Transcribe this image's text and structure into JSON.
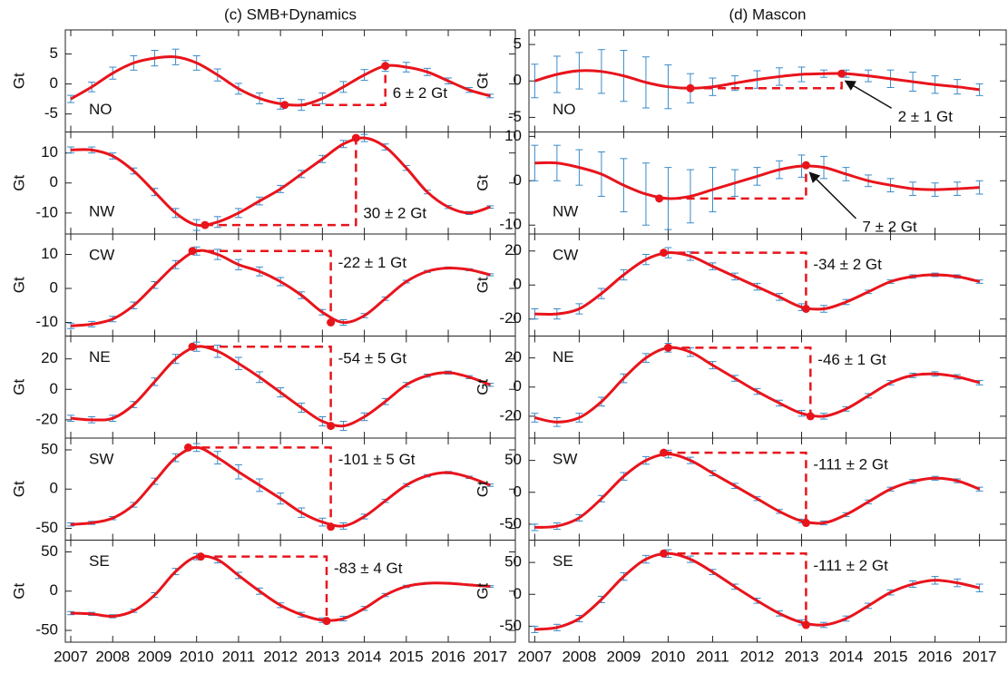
{
  "chart_data": [
    {
      "type": "line",
      "title": "(c) SMB+Dynamics",
      "label": "NO",
      "annotation": "6 ± 2 Gt",
      "ylabel": "Gt",
      "color": "#e8141c",
      "error_color": "#3a8ac8",
      "x": [
        2007,
        2007.5,
        2008,
        2008.5,
        2009,
        2009.5,
        2010,
        2010.5,
        2011,
        2011.5,
        2012,
        2012.5,
        2013,
        2013.5,
        2014,
        2014.5,
        2015,
        2015.5,
        2016,
        2016.5,
        2017
      ],
      "values": [
        -2.5,
        -0.5,
        1.8,
        3.5,
        4.3,
        4.5,
        3.5,
        1.5,
        -0.8,
        -2.4,
        -3.3,
        -3.5,
        -2.4,
        -0.5,
        1.5,
        3,
        2.8,
        2,
        0.5,
        -1,
        -2
      ],
      "errors": [
        0.6,
        0.8,
        1,
        1.2,
        1.3,
        1.3,
        1.2,
        1,
        0.9,
        0.9,
        0.9,
        0.9,
        0.9,
        0.9,
        0.9,
        0.9,
        0.8,
        0.6,
        0.5,
        0.4,
        0.3
      ],
      "highlight_points": [
        [
          2012.1,
          -3.5
        ],
        [
          2014.5,
          3
        ]
      ],
      "xlim": [
        2006.87,
        2017.6
      ],
      "xticks": [
        2007,
        2008,
        2009,
        2010,
        2011,
        2012,
        2013,
        2014,
        2015,
        2016,
        2017
      ],
      "ylim": [
        -8,
        9
      ],
      "yticks": [
        -5,
        0,
        5
      ]
    },
    {
      "type": "line",
      "label": "NW",
      "annotation": "30 ± 2 Gt",
      "ylabel": "Gt",
      "color": "#e8141c",
      "error_color": "#3a8ac8",
      "x": [
        2007,
        2007.5,
        2008,
        2008.5,
        2009,
        2009.5,
        2010,
        2010.5,
        2011,
        2011.5,
        2012,
        2012.5,
        2013,
        2013.5,
        2014,
        2014.5,
        2015,
        2015.5,
        2016,
        2016.5,
        2017
      ],
      "values": [
        11,
        11,
        9,
        4,
        -3,
        -10,
        -14,
        -13,
        -10,
        -6,
        -2,
        3,
        8,
        13,
        15,
        12,
        5,
        -3,
        -8,
        -10,
        -8
      ],
      "errors": [
        1,
        1,
        1,
        1,
        1.2,
        1.5,
        1.8,
        1.8,
        1.5,
        1.3,
        1.2,
        1.2,
        1.2,
        1.2,
        1.2,
        1,
        0.8,
        0.6,
        0.5,
        0.5,
        0.4
      ],
      "highlight_points": [
        [
          2010.2,
          -14
        ],
        [
          2013.8,
          15
        ]
      ],
      "xlim": [
        2006.87,
        2017.6
      ],
      "xticks": [
        2007,
        2008,
        2009,
        2010,
        2011,
        2012,
        2013,
        2014,
        2015,
        2016,
        2017
      ],
      "ylim": [
        -17,
        17
      ],
      "yticks": [
        -10,
        0,
        10
      ]
    },
    {
      "type": "line",
      "label": "CW",
      "annotation": "-22 ± 1 Gt",
      "ylabel": "Gt",
      "color": "#e8141c",
      "error_color": "#3a8ac8",
      "x": [
        2007,
        2007.5,
        2008,
        2008.5,
        2009,
        2009.5,
        2010,
        2010.5,
        2011,
        2011.5,
        2012,
        2012.5,
        2013,
        2013.5,
        2014,
        2014.5,
        2015,
        2015.5,
        2016,
        2016.5,
        2017
      ],
      "values": [
        -11,
        -10.5,
        -9,
        -5,
        1,
        7,
        11,
        10,
        7,
        5,
        2,
        -2,
        -7,
        -10,
        -8,
        -3,
        2,
        5,
        6,
        5.5,
        4
      ],
      "errors": [
        0.8,
        0.8,
        0.8,
        1,
        1,
        1.2,
        1.2,
        1.5,
        1.5,
        1.3,
        1.2,
        1,
        0.8,
        0.8,
        0.6,
        0.5,
        0.4,
        0.3,
        0.3,
        0.3,
        0.3
      ],
      "highlight_points": [
        [
          2009.9,
          11
        ],
        [
          2013.2,
          -10
        ]
      ],
      "xlim": [
        2006.87,
        2017.6
      ],
      "xticks": [
        2007,
        2008,
        2009,
        2010,
        2011,
        2012,
        2013,
        2014,
        2015,
        2016,
        2017
      ],
      "ylim": [
        -14,
        16
      ],
      "yticks": [
        -10,
        0,
        10
      ]
    },
    {
      "type": "line",
      "label": "NE",
      "annotation": "-54 ± 5 Gt",
      "ylabel": "Gt",
      "color": "#e8141c",
      "error_color": "#3a8ac8",
      "x": [
        2007,
        2007.5,
        2008,
        2008.5,
        2009,
        2009.5,
        2010,
        2010.5,
        2011,
        2011.5,
        2012,
        2012.5,
        2013,
        2013.5,
        2014,
        2014.5,
        2015,
        2015.5,
        2016,
        2016.5,
        2017
      ],
      "values": [
        -19,
        -20,
        -19,
        -10,
        5,
        20,
        28,
        25,
        17,
        8,
        -2,
        -12,
        -21,
        -24,
        -18,
        -8,
        3,
        9,
        11,
        8,
        3
      ],
      "errors": [
        2,
        2,
        2,
        2,
        2.5,
        3,
        3,
        4,
        4,
        3.5,
        3,
        3,
        3,
        3,
        2.5,
        2,
        1.5,
        1,
        1,
        1,
        1
      ],
      "highlight_points": [
        [
          2009.9,
          28
        ],
        [
          2013.2,
          -24
        ]
      ],
      "xlim": [
        2006.87,
        2017.6
      ],
      "xticks": [
        2007,
        2008,
        2009,
        2010,
        2011,
        2012,
        2013,
        2014,
        2015,
        2016,
        2017
      ],
      "ylim": [
        -32,
        35
      ],
      "yticks": [
        -20,
        0,
        20
      ]
    },
    {
      "type": "line",
      "label": "SW",
      "annotation": "-101 ± 5 Gt",
      "ylabel": "Gt",
      "color": "#e8141c",
      "error_color": "#3a8ac8",
      "x": [
        2007,
        2007.5,
        2008,
        2008.5,
        2009,
        2009.5,
        2010,
        2010.5,
        2011,
        2011.5,
        2012,
        2012.5,
        2013,
        2013.5,
        2014,
        2014.5,
        2015,
        2015.5,
        2016,
        2016.5,
        2017
      ],
      "values": [
        -45,
        -43,
        -37,
        -20,
        10,
        40,
        53,
        40,
        22,
        5,
        -12,
        -30,
        -42,
        -47,
        -35,
        -15,
        5,
        17,
        21,
        15,
        5
      ],
      "errors": [
        2,
        2,
        2,
        3,
        4,
        5,
        5,
        8,
        9,
        8,
        7,
        6,
        5,
        4,
        3,
        2,
        2,
        1.5,
        1.5,
        1.5,
        1.5
      ],
      "highlight_points": [
        [
          2009.8,
          53
        ],
        [
          2013.2,
          -48
        ]
      ],
      "xlim": [
        2006.87,
        2017.6
      ],
      "xticks": [
        2007,
        2008,
        2009,
        2010,
        2011,
        2012,
        2013,
        2014,
        2015,
        2016,
        2017
      ],
      "ylim": [
        -65,
        65
      ],
      "yticks": [
        -50,
        0,
        50
      ]
    },
    {
      "type": "line",
      "label": "SE",
      "annotation": "-83 ± 4 Gt",
      "ylabel": "Gt",
      "color": "#e8141c",
      "error_color": "#3a8ac8",
      "x": [
        2007,
        2007.5,
        2008,
        2008.5,
        2009,
        2009.5,
        2010,
        2010.5,
        2011,
        2011.5,
        2012,
        2012.5,
        2013,
        2013.5,
        2014,
        2014.5,
        2015,
        2015.5,
        2016,
        2016.5,
        2017
      ],
      "values": [
        -28,
        -29,
        -32,
        -25,
        -5,
        25,
        44,
        40,
        20,
        0,
        -18,
        -30,
        -37,
        -35,
        -22,
        -5,
        6,
        10,
        10,
        8,
        6
      ],
      "errors": [
        2,
        2,
        2,
        2,
        3,
        4,
        4,
        4,
        4,
        4,
        3,
        3,
        3,
        3,
        2.5,
        2,
        1.5,
        1,
        1,
        1,
        1
      ],
      "highlight_points": [
        [
          2010.1,
          44
        ],
        [
          2013.1,
          -38
        ]
      ],
      "xlim": [
        2006.87,
        2017.6
      ],
      "xticks": [
        2007,
        2008,
        2009,
        2010,
        2011,
        2012,
        2013,
        2014,
        2015,
        2016,
        2017
      ],
      "ylim": [
        -65,
        65
      ],
      "yticks": [
        -50,
        0,
        50
      ]
    },
    {
      "type": "line",
      "title": "(d) Mascon",
      "label": "NO",
      "annotation": "2 ± 1 Gt",
      "arrow": true,
      "ylabel": "Gt",
      "color": "#e8141c",
      "error_color": "#3a8ac8",
      "x": [
        2007,
        2007.5,
        2008,
        2008.5,
        2009,
        2009.5,
        2010,
        2010.5,
        2011,
        2011.5,
        2012,
        2012.5,
        2013,
        2013.5,
        2014,
        2014.5,
        2015,
        2015.5,
        2016,
        2016.5,
        2017
      ],
      "values": [
        0,
        0.9,
        1.4,
        1.3,
        0.7,
        -0.2,
        -0.8,
        -1,
        -0.8,
        -0.3,
        0.2,
        0.6,
        0.9,
        1,
        1,
        0.7,
        0.3,
        -0.1,
        -0.5,
        -0.8,
        -1.2
      ],
      "errors": [
        2.3,
        2.5,
        2.5,
        3,
        3.5,
        3.5,
        3,
        2,
        1.2,
        1,
        1.2,
        1.2,
        1,
        0.5,
        0.5,
        0.8,
        1.2,
        1.3,
        1.2,
        1,
        0.8
      ],
      "highlight_points": [
        [
          2010.5,
          -1
        ],
        [
          2013.9,
          1
        ]
      ],
      "xlim": [
        2006.87,
        2017.6
      ],
      "xticks": [
        2007,
        2008,
        2009,
        2010,
        2011,
        2012,
        2013,
        2014,
        2015,
        2016,
        2017
      ],
      "ylim": [
        -7,
        7
      ],
      "yticks": [
        -5,
        0,
        5
      ]
    },
    {
      "type": "line",
      "label": "NW",
      "annotation": "7 ± 2 Gt",
      "arrow": true,
      "ylabel": "Gt",
      "color": "#e8141c",
      "error_color": "#3a8ac8",
      "x": [
        2007,
        2007.5,
        2008,
        2008.5,
        2009,
        2009.5,
        2010,
        2010.5,
        2011,
        2011.5,
        2012,
        2012.5,
        2013,
        2013.5,
        2014,
        2014.5,
        2015,
        2015.5,
        2016,
        2016.5,
        2017
      ],
      "values": [
        4,
        4,
        3,
        1.5,
        -1,
        -3,
        -4,
        -3.5,
        -2,
        -0.5,
        1,
        2.5,
        3.3,
        3,
        1.5,
        0,
        -1,
        -1.8,
        -2,
        -1.8,
        -1.5
      ],
      "errors": [
        4,
        4,
        4,
        5,
        6,
        7,
        7,
        6,
        5,
        3,
        2,
        2,
        2.5,
        2.5,
        1.5,
        1.3,
        1.5,
        1.5,
        1.5,
        1.5,
        1.5
      ],
      "highlight_points": [
        [
          2009.8,
          -4
        ],
        [
          2013.1,
          3.5
        ]
      ],
      "xlim": [
        2006.87,
        2017.6
      ],
      "xticks": [
        2007,
        2008,
        2009,
        2010,
        2011,
        2012,
        2013,
        2014,
        2015,
        2016,
        2017
      ],
      "ylim": [
        -12,
        11
      ],
      "yticks": [
        -10,
        0,
        10
      ]
    },
    {
      "type": "line",
      "label": "CW",
      "annotation": "-34 ± 2 Gt",
      "ylabel": "Gt",
      "color": "#e8141c",
      "error_color": "#3a8ac8",
      "x": [
        2007,
        2007.5,
        2008,
        2008.5,
        2009,
        2009.5,
        2010,
        2010.5,
        2011,
        2011.5,
        2012,
        2012.5,
        2013,
        2013.5,
        2014,
        2014.5,
        2015,
        2015.5,
        2016,
        2016.5,
        2017
      ],
      "values": [
        -17,
        -17,
        -14,
        -5,
        6,
        15,
        19,
        17,
        11,
        5,
        -1,
        -7,
        -13,
        -14,
        -10,
        -4,
        2,
        5,
        6,
        5,
        2
      ],
      "errors": [
        3,
        3,
        3,
        3,
        3,
        3,
        3,
        2.5,
        2,
        2,
        2,
        2,
        2,
        2,
        1.5,
        1,
        1,
        1,
        1,
        1,
        1
      ],
      "highlight_points": [
        [
          2009.9,
          19
        ],
        [
          2013.1,
          -14
        ]
      ],
      "xlim": [
        2006.87,
        2017.6
      ],
      "xticks": [
        2007,
        2008,
        2009,
        2010,
        2011,
        2012,
        2013,
        2014,
        2015,
        2016,
        2017
      ],
      "ylim": [
        -30,
        30
      ],
      "yticks": [
        -20,
        0,
        20
      ]
    },
    {
      "type": "line",
      "label": "NE",
      "annotation": "-46 ± 1 Gt",
      "ylabel": "Gt",
      "color": "#e8141c",
      "error_color": "#3a8ac8",
      "x": [
        2007,
        2007.5,
        2008,
        2008.5,
        2009,
        2009.5,
        2010,
        2010.5,
        2011,
        2011.5,
        2012,
        2012.5,
        2013,
        2013.5,
        2014,
        2014.5,
        2015,
        2015.5,
        2016,
        2016.5,
        2017
      ],
      "values": [
        -21,
        -24,
        -21,
        -10,
        6,
        20,
        27,
        24,
        15,
        6,
        -3,
        -11,
        -18,
        -20,
        -15,
        -6,
        3,
        8,
        9,
        7,
        3
      ],
      "errors": [
        3,
        3,
        3,
        3,
        3,
        3,
        3,
        3,
        2.5,
        2,
        2,
        2,
        2,
        2,
        1.5,
        1.5,
        1.5,
        1.5,
        1.5,
        1.5,
        1.5
      ],
      "highlight_points": [
        [
          2010,
          27
        ],
        [
          2013.2,
          -20
        ]
      ],
      "xlim": [
        2006.87,
        2017.6
      ],
      "xticks": [
        2007,
        2008,
        2009,
        2010,
        2011,
        2012,
        2013,
        2014,
        2015,
        2016,
        2017
      ],
      "ylim": [
        -35,
        35
      ],
      "yticks": [
        -20,
        0,
        20
      ]
    },
    {
      "type": "line",
      "label": "SW",
      "annotation": "-111 ± 2 Gt",
      "ylabel": "Gt",
      "color": "#e8141c",
      "error_color": "#3a8ac8",
      "x": [
        2007,
        2007.5,
        2008,
        2008.5,
        2009,
        2009.5,
        2010,
        2010.5,
        2011,
        2011.5,
        2012,
        2012.5,
        2013,
        2013.5,
        2014,
        2014.5,
        2015,
        2015.5,
        2016,
        2016.5,
        2017
      ],
      "values": [
        -55,
        -53,
        -40,
        -10,
        25,
        50,
        60,
        50,
        30,
        10,
        -10,
        -30,
        -45,
        -48,
        -35,
        -15,
        5,
        17,
        22,
        18,
        5
      ],
      "errors": [
        5,
        5,
        5,
        5,
        6,
        6,
        6,
        5,
        4,
        4,
        3,
        3,
        3,
        3,
        3,
        3,
        3,
        3,
        3,
        3,
        3
      ],
      "highlight_points": [
        [
          2009.9,
          62
        ],
        [
          2013.1,
          -48
        ]
      ],
      "xlim": [
        2006.87,
        2017.6
      ],
      "xticks": [
        2007,
        2008,
        2009,
        2010,
        2011,
        2012,
        2013,
        2014,
        2015,
        2016,
        2017
      ],
      "ylim": [
        -75,
        85
      ],
      "yticks": [
        -50,
        0,
        50
      ]
    },
    {
      "type": "line",
      "label": "SE",
      "annotation": "-111 ± 2 Gt",
      "ylabel": "Gt",
      "color": "#e8141c",
      "error_color": "#3a8ac8",
      "x": [
        2007,
        2007.5,
        2008,
        2008.5,
        2009,
        2009.5,
        2010,
        2010.5,
        2011,
        2011.5,
        2012,
        2012.5,
        2013,
        2013.5,
        2014,
        2014.5,
        2015,
        2015.5,
        2016,
        2016.5,
        2017
      ],
      "values": [
        -55,
        -52,
        -38,
        -8,
        28,
        55,
        64,
        55,
        35,
        12,
        -10,
        -30,
        -44,
        -48,
        -38,
        -18,
        3,
        16,
        22,
        18,
        10
      ],
      "errors": [
        5,
        5,
        5,
        5,
        6,
        6,
        6,
        5,
        4,
        4,
        4,
        4,
        4,
        4,
        4,
        4,
        4,
        5,
        6,
        6,
        6
      ],
      "highlight_points": [
        [
          2009.9,
          64
        ],
        [
          2013.1,
          -48
        ]
      ],
      "xlim": [
        2006.87,
        2017.6
      ],
      "xticks": [
        2007,
        2008,
        2009,
        2010,
        2011,
        2012,
        2013,
        2014,
        2015,
        2016,
        2017
      ],
      "ylim": [
        -75,
        85
      ],
      "yticks": [
        -50,
        0,
        50
      ]
    }
  ]
}
